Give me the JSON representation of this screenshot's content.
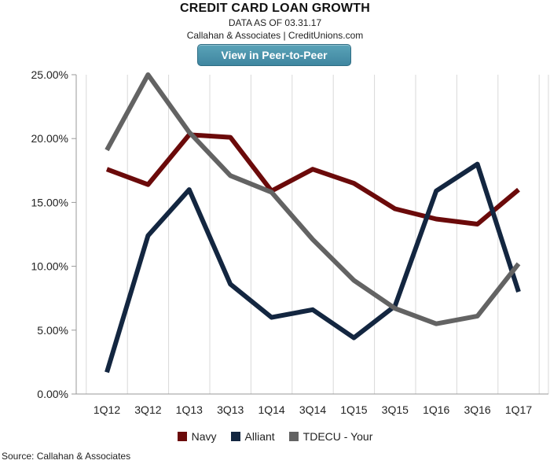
{
  "header": {
    "title": "CREDIT CARD LOAN GROWTH",
    "subtitle": "DATA AS OF 03.31.17",
    "subtitle2": "Callahan & Associates | CreditUnions.com",
    "button_label": "View in Peer-to-Peer"
  },
  "footer": {
    "source": "Source: Callahan & Associates"
  },
  "chart_data": {
    "type": "line",
    "title": "CREDIT CARD LOAN GROWTH",
    "xlabel": "",
    "ylabel": "",
    "categories": [
      "1Q12",
      "3Q12",
      "1Q13",
      "3Q13",
      "1Q14",
      "3Q14",
      "1Q15",
      "3Q15",
      "1Q16",
      "3Q16",
      "1Q17"
    ],
    "ylim": [
      0,
      25
    ],
    "yticks": [
      0,
      5,
      10,
      15,
      20,
      25
    ],
    "ytick_labels": [
      "0.00%",
      "5.00%",
      "10.00%",
      "15.00%",
      "20.00%",
      "25.00%"
    ],
    "grid": "vertical gridlines on",
    "legend_position": "bottom-center",
    "series": [
      {
        "name": "Navy",
        "color": "#6b0a0a",
        "values": [
          17.6,
          16.4,
          20.3,
          20.1,
          15.9,
          17.6,
          16.5,
          14.5,
          13.7,
          13.3,
          16.0
        ]
      },
      {
        "name": "Alliant",
        "color": "#132640",
        "values": [
          1.7,
          12.4,
          16.0,
          8.6,
          6.0,
          6.6,
          4.4,
          6.9,
          15.9,
          18.0,
          8.0
        ]
      },
      {
        "name": "TDECU - Your",
        "color": "#636363",
        "values": [
          19.1,
          25.0,
          20.5,
          17.1,
          15.8,
          12.1,
          8.9,
          6.7,
          5.5,
          6.1,
          10.2
        ]
      }
    ]
  }
}
